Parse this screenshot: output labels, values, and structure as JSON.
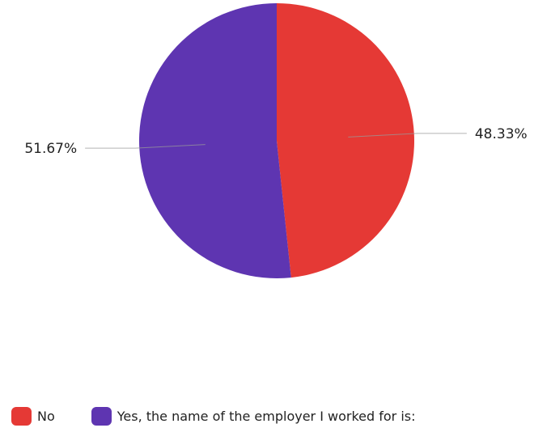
{
  "chart_data": {
    "type": "pie",
    "slices": [
      {
        "label": "No",
        "value": 48.33,
        "display": "48.33%",
        "color": "#e53935"
      },
      {
        "label": "Yes, the name of the employer I worked for is:",
        "value": 51.67,
        "display": "51.67%",
        "color": "#5e35b1"
      }
    ],
    "legend_position": "bottom-left"
  }
}
